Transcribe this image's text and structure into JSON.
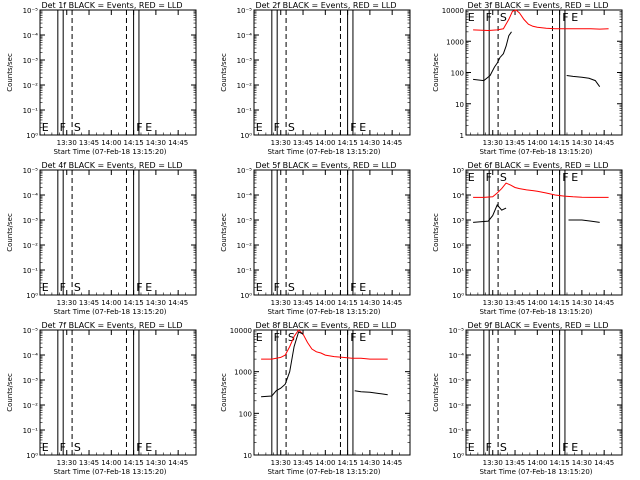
{
  "figure": {
    "start_time_label": "Start Time (07-Feb-18 13:15:20)",
    "ylabel": "Counts/sec"
  },
  "chart_data": [
    {
      "type": "line",
      "title": "Det 1f BLACK = Events, RED = LLD",
      "xlabel": "Start Time (07-Feb-18 13:15:20)",
      "ylabel": "Counts/sec",
      "xticks": [
        "13:30",
        "13:45",
        "14:00",
        "14:15",
        "14:30",
        "14:45"
      ],
      "yticks": [
        "10⁰",
        "10⁻¹",
        "10⁻²",
        "10⁻³",
        "10⁻⁴",
        "10⁻⁵"
      ],
      "ylim_exp": [
        -5,
        0
      ],
      "markers": [
        "E",
        "F",
        "S",
        "F",
        "E"
      ],
      "series": []
    },
    {
      "type": "line",
      "title": "Det 2f BLACK = Events, RED = LLD",
      "xlabel": "Start Time (07-Feb-18 13:15:20)",
      "ylabel": "Counts/sec",
      "xticks": [
        "13:30",
        "13:45",
        "14:00",
        "14:15",
        "14:30",
        "14:45"
      ],
      "yticks": [
        "10⁰",
        "10⁻¹",
        "10⁻²",
        "10⁻³",
        "10⁻⁴",
        "10⁻⁵"
      ],
      "ylim_exp": [
        -5,
        0
      ],
      "markers": [
        "E",
        "F",
        "S",
        "F",
        "E"
      ],
      "series": []
    },
    {
      "type": "line",
      "title": "Det 3f BLACK = Events, RED = LLD",
      "xlabel": "Start Time (07-Feb-18 13:15:20)",
      "ylabel": "Counts/sec",
      "xticks": [
        "13:30",
        "13:45",
        "14:00",
        "14:15",
        "14:30",
        "14:45"
      ],
      "yticks": [
        "1",
        "10",
        "100",
        "1000",
        "10000"
      ],
      "ylim_exp": [
        0,
        4
      ],
      "markers": [
        "E",
        "F",
        "S",
        "F",
        "E"
      ],
      "series": [
        {
          "color": "#ff0000",
          "x": [
            13.28,
            13.45,
            13.55,
            13.62,
            13.68,
            13.72,
            13.76,
            13.8,
            13.85,
            13.9,
            13.95,
            14.0,
            14.1,
            14.2,
            14.3,
            14.4,
            14.5,
            14.6,
            14.7,
            14.8
          ],
          "y": [
            2300,
            2200,
            2300,
            2500,
            5000,
            9000,
            11000,
            8000,
            5000,
            3500,
            3000,
            2800,
            2600,
            2500,
            2500,
            2500,
            2500,
            2500,
            2450,
            2500
          ]
        },
        {
          "color": "#000000",
          "x": [
            13.28,
            13.4,
            13.47,
            13.52,
            13.55,
            13.58,
            13.62,
            13.65,
            13.68,
            13.71
          ],
          "y": [
            60,
            55,
            80,
            150,
            200,
            300,
            400,
            700,
            1500,
            2000
          ]
        },
        {
          "color": "#000000",
          "x": [
            14.33,
            14.4,
            14.5,
            14.58,
            14.65,
            14.7
          ],
          "y": [
            80,
            75,
            70,
            65,
            55,
            35
          ]
        }
      ]
    },
    {
      "type": "line",
      "title": "Det 4f BLACK = Events, RED = LLD",
      "xlabel": "Start Time (07-Feb-18 13:15:20)",
      "ylabel": "Counts/sec",
      "xticks": [
        "13:30",
        "13:45",
        "14:00",
        "14:15",
        "14:30",
        "14:45"
      ],
      "yticks": [
        "10⁰",
        "10⁻¹",
        "10⁻²",
        "10⁻³",
        "10⁻⁴",
        "10⁻⁵"
      ],
      "ylim_exp": [
        -5,
        0
      ],
      "markers": [
        "E",
        "F",
        "S",
        "F",
        "E"
      ],
      "series": []
    },
    {
      "type": "line",
      "title": "Det 5f BLACK = Events, RED = LLD",
      "xlabel": "Start Time (07-Feb-18 13:15:20)",
      "ylabel": "Counts/sec",
      "xticks": [
        "13:30",
        "13:45",
        "14:00",
        "14:15",
        "14:30",
        "14:45"
      ],
      "yticks": [
        "10⁰",
        "10⁻¹",
        "10⁻²",
        "10⁻³",
        "10⁻⁴",
        "10⁻⁵"
      ],
      "ylim_exp": [
        -5,
        0
      ],
      "markers": [
        "E",
        "F",
        "S",
        "F",
        "E"
      ],
      "series": []
    },
    {
      "type": "line",
      "title": "Det 6f BLACK = Events, RED = LLD",
      "xlabel": "Start Time (07-Feb-18 13:15:20)",
      "ylabel": "Counts/sec",
      "xticks": [
        "13:30",
        "13:45",
        "14:00",
        "14:15",
        "14:30",
        "14:45"
      ],
      "yticks": [
        "10⁰",
        "10¹",
        "10²",
        "10³",
        "10⁴",
        "10⁵"
      ],
      "ylim_exp": [
        0,
        5
      ],
      "markers": [
        "E",
        "F",
        "S",
        "F",
        "E"
      ],
      "series": [
        {
          "color": "#ff0000",
          "x": [
            13.28,
            13.4,
            13.5,
            13.55,
            13.6,
            13.65,
            13.7,
            13.75,
            13.8,
            13.88,
            13.95,
            14.0,
            14.1,
            14.2,
            14.3,
            14.4,
            14.5,
            14.6,
            14.7,
            14.8
          ],
          "y": [
            8000,
            8000,
            8500,
            12000,
            18000,
            30000,
            25000,
            20000,
            18000,
            16000,
            15000,
            14000,
            12000,
            10000,
            9000,
            8500,
            8200,
            8000,
            8000,
            8000
          ]
        },
        {
          "color": "#000000",
          "x": [
            13.28,
            13.45,
            13.5,
            13.55,
            13.6,
            13.65
          ],
          "y": [
            800,
            900,
            1500,
            4000,
            2500,
            3000
          ]
        },
        {
          "color": "#000000",
          "x": [
            14.35,
            14.4,
            14.5,
            14.6,
            14.7
          ],
          "y": [
            1000,
            1000,
            1000,
            900,
            800
          ]
        }
      ]
    },
    {
      "type": "line",
      "title": "Det 7f BLACK = Events, RED = LLD",
      "xlabel": "Start Time (07-Feb-18 13:15:20)",
      "ylabel": "Counts/sec",
      "xticks": [
        "13:30",
        "13:45",
        "14:00",
        "14:15",
        "14:30",
        "14:45"
      ],
      "yticks": [
        "10⁰",
        "10⁻¹",
        "10⁻²",
        "10⁻³",
        "10⁻⁴",
        "10⁻⁵"
      ],
      "ylim_exp": [
        -5,
        0
      ],
      "markers": [
        "E",
        "F",
        "S",
        "F",
        "E"
      ],
      "series": []
    },
    {
      "type": "line",
      "title": "Det 8f BLACK = Events, RED = LLD",
      "xlabel": "Start Time (07-Feb-18 13:15:20)",
      "ylabel": "Counts/sec",
      "xticks": [
        "13:30",
        "13:45",
        "14:00",
        "14:15",
        "14:30",
        "14:45"
      ],
      "yticks": [
        "10",
        "100",
        "1000",
        "10000"
      ],
      "ylim_exp": [
        1,
        4
      ],
      "markers": [
        "E",
        "F",
        "S",
        "F",
        "E"
      ],
      "series": [
        {
          "color": "#ff0000",
          "x": [
            13.28,
            13.4,
            13.5,
            13.55,
            13.6,
            13.65,
            13.7,
            13.75,
            13.8,
            13.85,
            13.9,
            13.95,
            14.0,
            14.1,
            14.2,
            14.3,
            14.4,
            14.5,
            14.6,
            14.7
          ],
          "y": [
            2000,
            2000,
            2200,
            2500,
            4000,
            7000,
            10000,
            8000,
            5000,
            3500,
            3000,
            2800,
            2500,
            2300,
            2200,
            2100,
            2100,
            2000,
            2000,
            2000
          ]
        },
        {
          "color": "#000000",
          "x": [
            13.28,
            13.4,
            13.45,
            13.5,
            13.55,
            13.6,
            13.65,
            13.7,
            13.75
          ],
          "y": [
            250,
            260,
            350,
            400,
            500,
            1000,
            4000,
            9000,
            8000
          ]
        },
        {
          "color": "#000000",
          "x": [
            14.33,
            14.4,
            14.5,
            14.6,
            14.7
          ],
          "y": [
            350,
            330,
            320,
            300,
            280
          ]
        }
      ]
    },
    {
      "type": "line",
      "title": "Det 9f BLACK = Events, RED = LLD",
      "xlabel": "Start Time (07-Feb-18 13:15:20)",
      "ylabel": "Counts/sec",
      "xticks": [
        "13:30",
        "13:45",
        "14:00",
        "14:15",
        "14:30",
        "14:45"
      ],
      "yticks": [
        "10⁰",
        "10⁻¹",
        "10⁻²",
        "10⁻³",
        "10⁻⁴",
        "10⁻⁵"
      ],
      "ylim_exp": [
        -5,
        0
      ],
      "markers": [
        "E",
        "F",
        "S",
        "F",
        "E"
      ],
      "series": []
    }
  ]
}
